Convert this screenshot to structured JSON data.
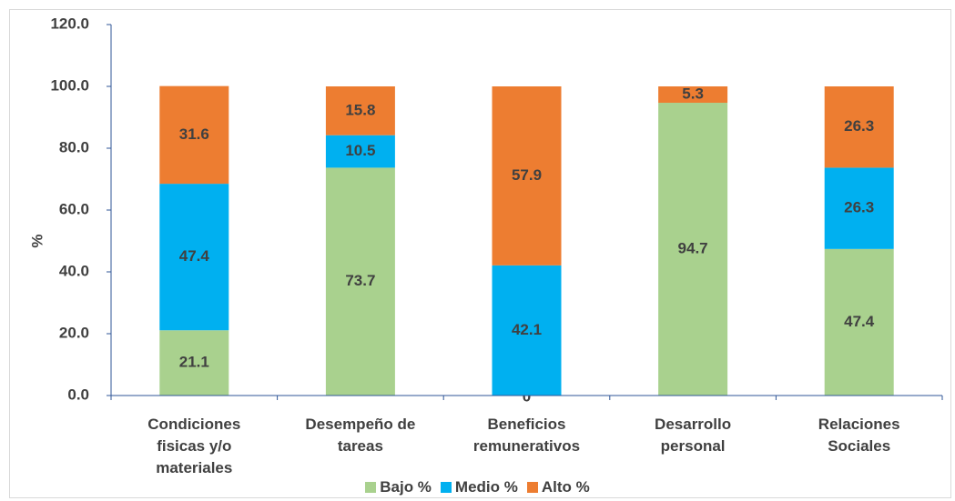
{
  "chart_data": {
    "type": "stacked_bar",
    "y_label": "%",
    "categories": [
      "Condiciones fisicas y/o materiales",
      "Desempeño de tareas",
      "Beneficios remunerativos",
      "Desarrollo personal",
      "Relaciones Sociales"
    ],
    "series": [
      {
        "name": "Bajo %",
        "color": "#a9d18e",
        "values": [
          21.1,
          73.7,
          0,
          94.7,
          47.4
        ]
      },
      {
        "name": "Medio %",
        "color": "#00b0f0",
        "values": [
          47.4,
          10.5,
          42.1,
          null,
          26.3
        ]
      },
      {
        "name": "Alto %",
        "color": "#ed7d31",
        "values": [
          31.6,
          15.8,
          57.9,
          5.3,
          26.3
        ]
      }
    ],
    "ylim": [
      0,
      120
    ],
    "yticks": [
      {
        "value": 0,
        "label": "0.0"
      },
      {
        "value": 20,
        "label": "20.0"
      },
      {
        "value": 40,
        "label": "40.0"
      },
      {
        "value": 60,
        "label": "60.0"
      },
      {
        "value": 80,
        "label": "80.0"
      },
      {
        "value": 100,
        "label": "100.0"
      },
      {
        "value": 120,
        "label": "120.0"
      }
    ],
    "grid": false,
    "legend": "bottom"
  }
}
